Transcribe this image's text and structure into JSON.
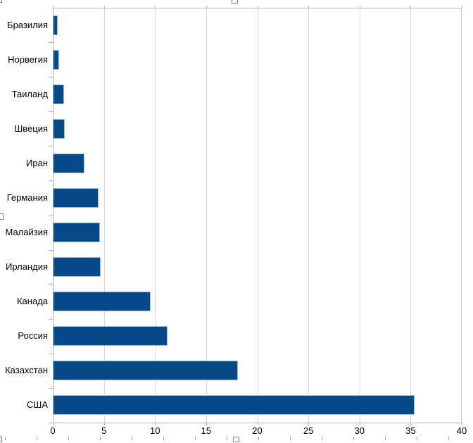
{
  "chart_data": {
    "type": "bar",
    "orientation": "horizontal",
    "title": "",
    "legend": "none",
    "grid": "vertical major gridlines",
    "categories": [
      "Бразилия",
      "Норвегия",
      "Таиланд",
      "Швеция",
      "Иран",
      "Германия",
      "Малайзия",
      "Ирландия",
      "Канада",
      "Россия",
      "Казахстан",
      "США"
    ],
    "values": [
      0.5,
      0.6,
      1.1,
      1.2,
      3.1,
      4.5,
      4.6,
      4.7,
      9.6,
      11.2,
      18.1,
      35.4
    ],
    "value_axis": {
      "min": 0,
      "max": 40,
      "tick_interval": 5,
      "tick_labels": [
        "0",
        "5",
        "10",
        "15",
        "20",
        "25",
        "30",
        "35",
        "40"
      ]
    },
    "colors": {
      "bar_fill": "#084a87",
      "bar_border": "#a3bcd8",
      "gridline": "#d9d9d9",
      "axis_line": "#b3b3b3",
      "plot_border": "#b9b9b9",
      "label_text": "#000000",
      "selection_handle_border": "#7f7f7f",
      "selection_dash": "#9a9a9a"
    }
  }
}
